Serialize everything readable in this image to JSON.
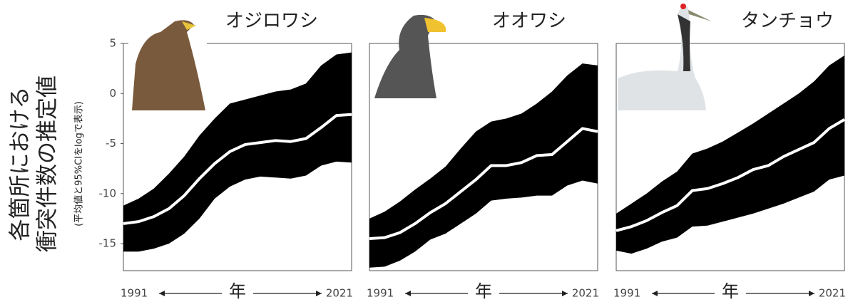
{
  "chart_data": [
    {
      "type": "band",
      "title": "オジロワシ",
      "xlabel": "年",
      "ylabel": [
        "各箇所における",
        "衝突件数の推定値"
      ],
      "ylabel_note": "(平均値と95%CIをlogで表示)",
      "x": [
        1991,
        1993,
        1995,
        1997,
        1999,
        2001,
        2003,
        2005,
        2007,
        2009,
        2011,
        2013,
        2015,
        2017,
        2019,
        2021
      ],
      "xlim": [
        1991,
        2021
      ],
      "xticks": [
        1991,
        2021
      ],
      "ylim": [
        -17.7,
        5
      ],
      "yticks": [
        5,
        0,
        -5,
        -10,
        -15
      ],
      "band_color": "#000000",
      "line_color": "#ffffff",
      "values": [
        -13,
        -12.8,
        -12.3,
        -11.5,
        -10.2,
        -8.5,
        -7,
        -5.8,
        -5.1,
        -4.9,
        -4.7,
        -4.8,
        -4.5,
        -3.4,
        -2.2,
        -2.1
      ],
      "upper": [
        -11.2,
        -10.5,
        -9.5,
        -8,
        -6.3,
        -4.2,
        -2.5,
        -1,
        -0.6,
        -0.2,
        0.2,
        0.4,
        1,
        2.8,
        3.9,
        4.1
      ],
      "lower": [
        -15.8,
        -15.8,
        -15.5,
        -15,
        -14,
        -12.5,
        -10.5,
        -9.3,
        -8.6,
        -8.3,
        -8.4,
        -8.5,
        -8.2,
        -7.2,
        -6.8,
        -6.9
      ]
    },
    {
      "type": "band",
      "title": "オオワシ",
      "xlabel": "年",
      "x": [
        1991,
        1993,
        1995,
        1997,
        1999,
        2001,
        2003,
        2005,
        2007,
        2009,
        2011,
        2013,
        2015,
        2017,
        2019,
        2021
      ],
      "xlim": [
        1991,
        2021
      ],
      "xticks": [
        1991,
        2021
      ],
      "ylim": [
        -17.7,
        5
      ],
      "band_color": "#000000",
      "line_color": "#ffffff",
      "values": [
        -14.5,
        -14.4,
        -13.9,
        -13,
        -11.9,
        -11,
        -9.8,
        -8.6,
        -7.2,
        -7.2,
        -6.9,
        -6.2,
        -6.1,
        -4.8,
        -3.5,
        -3.8
      ],
      "upper": [
        -12.5,
        -11.8,
        -10.8,
        -9.6,
        -8.5,
        -7.3,
        -5.5,
        -3.8,
        -2.8,
        -2.5,
        -2,
        -1,
        0.2,
        1.8,
        3,
        2.8
      ],
      "lower": [
        -17.4,
        -17.3,
        -16.7,
        -15.8,
        -14.6,
        -14,
        -13,
        -12,
        -10.7,
        -10.5,
        -10.4,
        -10.2,
        -10.2,
        -9.2,
        -8.7,
        -9
      ]
    },
    {
      "type": "band",
      "title": "タンチョウ",
      "xlabel": "年",
      "x": [
        1991,
        1993,
        1995,
        1997,
        1999,
        2001,
        2003,
        2005,
        2007,
        2009,
        2011,
        2013,
        2015,
        2017,
        2019,
        2021
      ],
      "xlim": [
        1991,
        2021
      ],
      "xticks": [
        1991,
        2021
      ],
      "ylim": [
        -17.7,
        5
      ],
      "band_color": "#000000",
      "line_color": "#ffffff",
      "values": [
        -13.7,
        -13.3,
        -12.7,
        -11.9,
        -11.2,
        -9.7,
        -9.5,
        -9,
        -8.4,
        -7.6,
        -7.2,
        -6.3,
        -5.6,
        -4.9,
        -3.5,
        -2.6
      ],
      "upper": [
        -12,
        -11,
        -10,
        -8.8,
        -7.8,
        -6,
        -5.5,
        -4.8,
        -3.9,
        -3,
        -2,
        -1,
        0,
        1.2,
        2.8,
        3.8
      ],
      "lower": [
        -15.7,
        -16,
        -15.5,
        -14.8,
        -14.4,
        -13.3,
        -13.2,
        -12.8,
        -12.4,
        -12,
        -11.5,
        -11,
        -10.4,
        -9.8,
        -8.6,
        -8.2
      ]
    }
  ]
}
